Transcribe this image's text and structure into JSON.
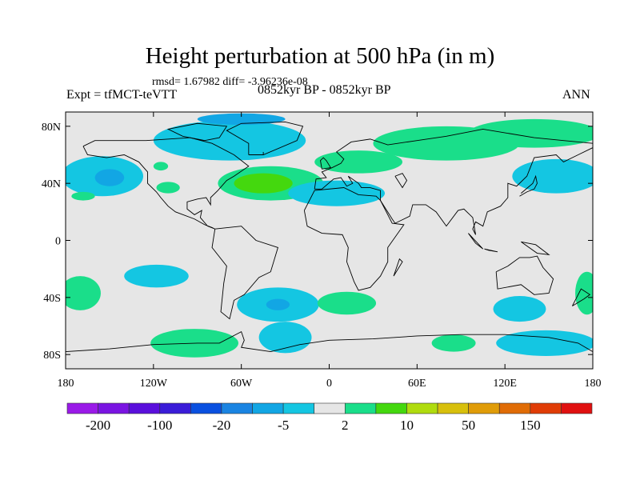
{
  "chart_data": {
    "type": "heatmap",
    "title": "Height perturbation at 500 hPa (in m)",
    "stats": "rmsd= 1.67982 diff= -3.96236e-08",
    "left_label": "Expt = tfMCT-teVTT",
    "center_label": "0852kyr BP - 0852kyr BP",
    "right_label": "ANN",
    "xlim": [
      -180,
      180
    ],
    "ylim": [
      -90,
      90
    ],
    "x_ticks": [
      {
        "value": -180,
        "label": "180"
      },
      {
        "value": -120,
        "label": "120W"
      },
      {
        "value": -60,
        "label": "60W"
      },
      {
        "value": 0,
        "label": "0"
      },
      {
        "value": 60,
        "label": "60E"
      },
      {
        "value": 120,
        "label": "120E"
      },
      {
        "value": 180,
        "label": "180"
      }
    ],
    "y_ticks": [
      {
        "value": 80,
        "label": "80N"
      },
      {
        "value": 40,
        "label": "40N"
      },
      {
        "value": 0,
        "label": "0"
      },
      {
        "value": -40,
        "label": "40S"
      },
      {
        "value": -80,
        "label": "80S"
      }
    ],
    "colorbar": {
      "levels": [
        -200,
        -150,
        -100,
        -50,
        -20,
        -10,
        -5,
        -2,
        2,
        5,
        10,
        20,
        50,
        100,
        150,
        200
      ],
      "colors": [
        "#9a1ae8",
        "#7a14e2",
        "#5a0fdc",
        "#3a1cd8",
        "#0a50e0",
        "#1a84e2",
        "#12a6e4",
        "#14c6e2",
        "#e6e6e6",
        "#1ade8a",
        "#44d80e",
        "#b0dc0e",
        "#d8c00c",
        "#e09c08",
        "#e06c06",
        "#e03c06",
        "#e01010"
      ],
      "labels": [
        {
          "level_index": 0,
          "label": "-200"
        },
        {
          "level_index": 2,
          "label": "-100"
        },
        {
          "level_index": 4,
          "label": "-20"
        },
        {
          "level_index": 6,
          "label": "-5"
        },
        {
          "level_index": 8,
          "label": "2"
        },
        {
          "level_index": 10,
          "label": "10"
        },
        {
          "level_index": 12,
          "label": "50"
        },
        {
          "level_index": 14,
          "label": "150"
        }
      ]
    },
    "anomaly_regions": [
      {
        "lon": -155,
        "lat": 45,
        "rlon": 28,
        "rlat": 14,
        "value": -3
      },
      {
        "lon": -150,
        "lat": 44,
        "rlon": 10,
        "rlat": 6,
        "value": -7
      },
      {
        "lon": -168,
        "lat": 31,
        "rlon": 8,
        "rlat": 3,
        "value": 3
      },
      {
        "lon": -68,
        "lat": 70,
        "rlon": 52,
        "rlat": 14,
        "value": -3
      },
      {
        "lon": -60,
        "lat": 85,
        "rlon": 30,
        "rlat": 4,
        "value": -7
      },
      {
        "lon": -115,
        "lat": 52,
        "rlon": 5,
        "rlat": 3,
        "value": 3
      },
      {
        "lon": -110,
        "lat": 37,
        "rlon": 8,
        "rlat": 4,
        "value": 3
      },
      {
        "lon": -40,
        "lat": 40,
        "rlon": 36,
        "rlat": 12,
        "value": 3
      },
      {
        "lon": -45,
        "lat": 40,
        "rlon": 20,
        "rlat": 7,
        "value": 7
      },
      {
        "lon": 20,
        "lat": 55,
        "rlon": 30,
        "rlat": 8,
        "value": 3
      },
      {
        "lon": 80,
        "lat": 68,
        "rlon": 50,
        "rlat": 12,
        "value": 3
      },
      {
        "lon": 140,
        "lat": 75,
        "rlon": 45,
        "rlat": 10,
        "value": 3
      },
      {
        "lon": 5,
        "lat": 33,
        "rlon": 33,
        "rlat": 9,
        "value": -3
      },
      {
        "lon": 155,
        "lat": 45,
        "rlon": 30,
        "rlat": 12,
        "value": -3
      },
      {
        "lon": -118,
        "lat": -25,
        "rlon": 22,
        "rlat": 8,
        "value": -3
      },
      {
        "lon": -170,
        "lat": -37,
        "rlon": 14,
        "rlat": 12,
        "value": 3
      },
      {
        "lon": -92,
        "lat": -72,
        "rlon": 30,
        "rlat": 10,
        "value": 3
      },
      {
        "lon": -35,
        "lat": -45,
        "rlon": 28,
        "rlat": 12,
        "value": -3
      },
      {
        "lon": -30,
        "lat": -68,
        "rlon": 18,
        "rlat": 11,
        "value": -3
      },
      {
        "lon": -35,
        "lat": -45,
        "rlon": 8,
        "rlat": 4,
        "value": -7
      },
      {
        "lon": 12,
        "lat": -44,
        "rlon": 20,
        "rlat": 8,
        "value": 3
      },
      {
        "lon": 85,
        "lat": -72,
        "rlon": 15,
        "rlat": 6,
        "value": 3
      },
      {
        "lon": 130,
        "lat": -48,
        "rlon": 18,
        "rlat": 9,
        "value": -3
      },
      {
        "lon": 148,
        "lat": -72,
        "rlon": 34,
        "rlat": 9,
        "value": -3
      },
      {
        "lon": 176,
        "lat": -37,
        "rlon": 8,
        "rlat": 15,
        "value": 3
      }
    ]
  }
}
